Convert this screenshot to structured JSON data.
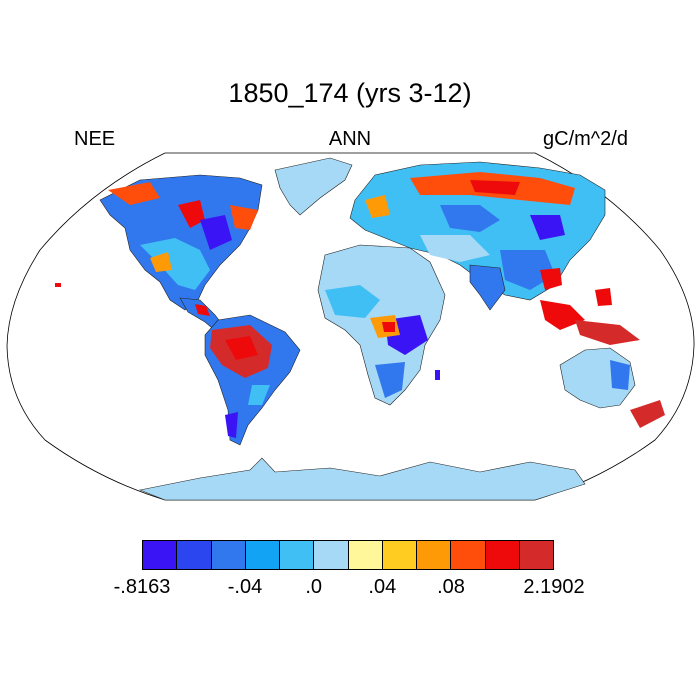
{
  "title": "1850_174 (yrs 3-12)",
  "labels": {
    "left": "NEE",
    "center": "ANN",
    "right": "gC/m^2/d"
  },
  "legend": {
    "colors": [
      "#3a14f5",
      "#2b46ee",
      "#3178ee",
      "#12a3f5",
      "#40bff5",
      "#a5d9f5",
      "#fff79a",
      "#ffcc21",
      "#ff9a07",
      "#ff4d0b",
      "#ee0a0a",
      "#d52a2a"
    ],
    "tick_labels": [
      {
        "text": "-.8163",
        "boundary": 0
      },
      {
        "text": "-.04",
        "boundary": 3
      },
      {
        "text": ".0",
        "boundary": 5
      },
      {
        "text": ".04",
        "boundary": 7
      },
      {
        "text": ".08",
        "boundary": 9
      },
      {
        "text": "2.1902",
        "boundary": 12
      }
    ]
  },
  "map": {
    "projection": "Robinson",
    "field": "NEE annual mean",
    "ocean_color": "#ffffff",
    "ice_color": "#a5d9f5"
  }
}
